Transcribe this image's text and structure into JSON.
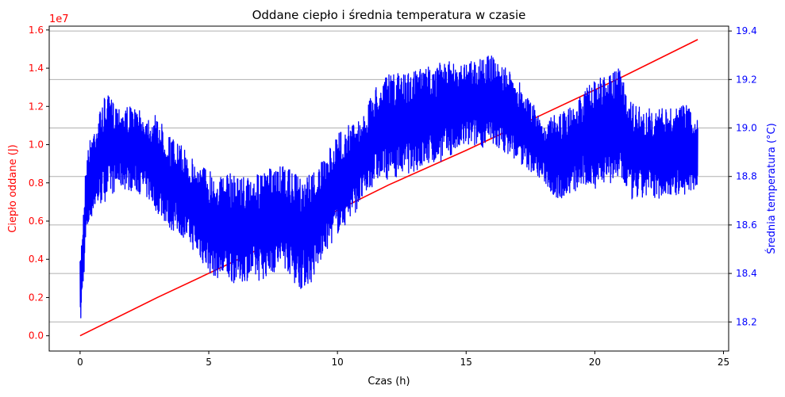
{
  "chart_data": {
    "type": "line",
    "title": "Oddane ciepło i średnia temperatura w czasie",
    "xlabel": "Czas (h)",
    "xlim": [
      -1.2,
      25.2
    ],
    "xticks": [
      0,
      5,
      10,
      15,
      20,
      25
    ],
    "grid": "horizontal lines at right-axis ticks",
    "left_axis": {
      "label": "Ciepło oddane (J)",
      "color": "#ff0000",
      "ylim": [
        -0.08,
        1.62
      ],
      "ticks": [
        "0.0",
        "0.2",
        "0.4",
        "0.6",
        "0.8",
        "1.0",
        "1.2",
        "1.4",
        "1.6"
      ],
      "tick_values": [
        0.0,
        0.2,
        0.4,
        0.6,
        0.8,
        1.0,
        1.2,
        1.4,
        1.6
      ],
      "offset_text": "1e7"
    },
    "right_axis": {
      "label": "Średnia temperatura (°C)",
      "color": "#0000ff",
      "ylim": [
        18.08,
        19.42
      ],
      "ticks": [
        "18.2",
        "18.4",
        "18.6",
        "18.8",
        "19.0",
        "19.2",
        "19.4"
      ],
      "tick_values": [
        18.2,
        18.4,
        18.6,
        18.8,
        19.0,
        19.2,
        19.4
      ]
    },
    "series": [
      {
        "axis": "left",
        "color": "#ff0000",
        "x": [
          0,
          3,
          6,
          9,
          12,
          15,
          18,
          21,
          24
        ],
        "y": [
          0.0,
          0.2,
          0.39,
          0.59,
          0.79,
          0.97,
          1.16,
          1.35,
          1.55
        ]
      },
      {
        "axis": "right",
        "color": "#0000ff",
        "x": [
          0,
          0.25,
          0.5,
          1.0,
          1.5,
          2.0,
          2.5,
          3.0,
          3.5,
          4.0,
          4.5,
          5.0,
          5.5,
          6.0,
          6.5,
          7.0,
          7.5,
          8.0,
          8.5,
          9.0,
          9.5,
          10.0,
          10.5,
          11.0,
          11.5,
          12.0,
          13.0,
          14.0,
          15.0,
          16.0,
          16.5,
          17.0,
          17.5,
          18.0,
          18.5,
          19.0,
          19.5,
          20.0,
          20.5,
          21.0,
          21.5,
          22.0,
          22.5,
          23.0,
          23.5,
          24.0
        ],
        "low": [
          18.15,
          18.55,
          18.65,
          18.7,
          18.75,
          18.74,
          18.72,
          18.65,
          18.58,
          18.55,
          18.48,
          18.4,
          18.37,
          18.36,
          18.37,
          18.37,
          18.4,
          18.42,
          18.33,
          18.36,
          18.48,
          18.56,
          18.62,
          18.7,
          18.78,
          18.79,
          18.82,
          18.86,
          18.92,
          18.92,
          18.9,
          18.86,
          18.82,
          18.78,
          18.7,
          18.72,
          18.75,
          18.75,
          18.77,
          18.77,
          18.69,
          18.71,
          18.71,
          18.72,
          18.72,
          18.75
        ],
        "high": [
          18.45,
          18.9,
          19.0,
          19.14,
          19.1,
          19.09,
          19.06,
          19.05,
          18.97,
          18.92,
          18.86,
          18.84,
          18.8,
          18.82,
          18.8,
          18.81,
          18.84,
          18.84,
          18.8,
          18.82,
          18.87,
          18.98,
          19.02,
          19.05,
          19.18,
          19.22,
          19.24,
          19.27,
          19.28,
          19.3,
          19.25,
          19.2,
          19.12,
          19.02,
          19.06,
          19.08,
          19.15,
          19.2,
          19.22,
          19.25,
          19.1,
          19.08,
          19.08,
          19.08,
          19.1,
          19.05
        ]
      }
    ]
  }
}
